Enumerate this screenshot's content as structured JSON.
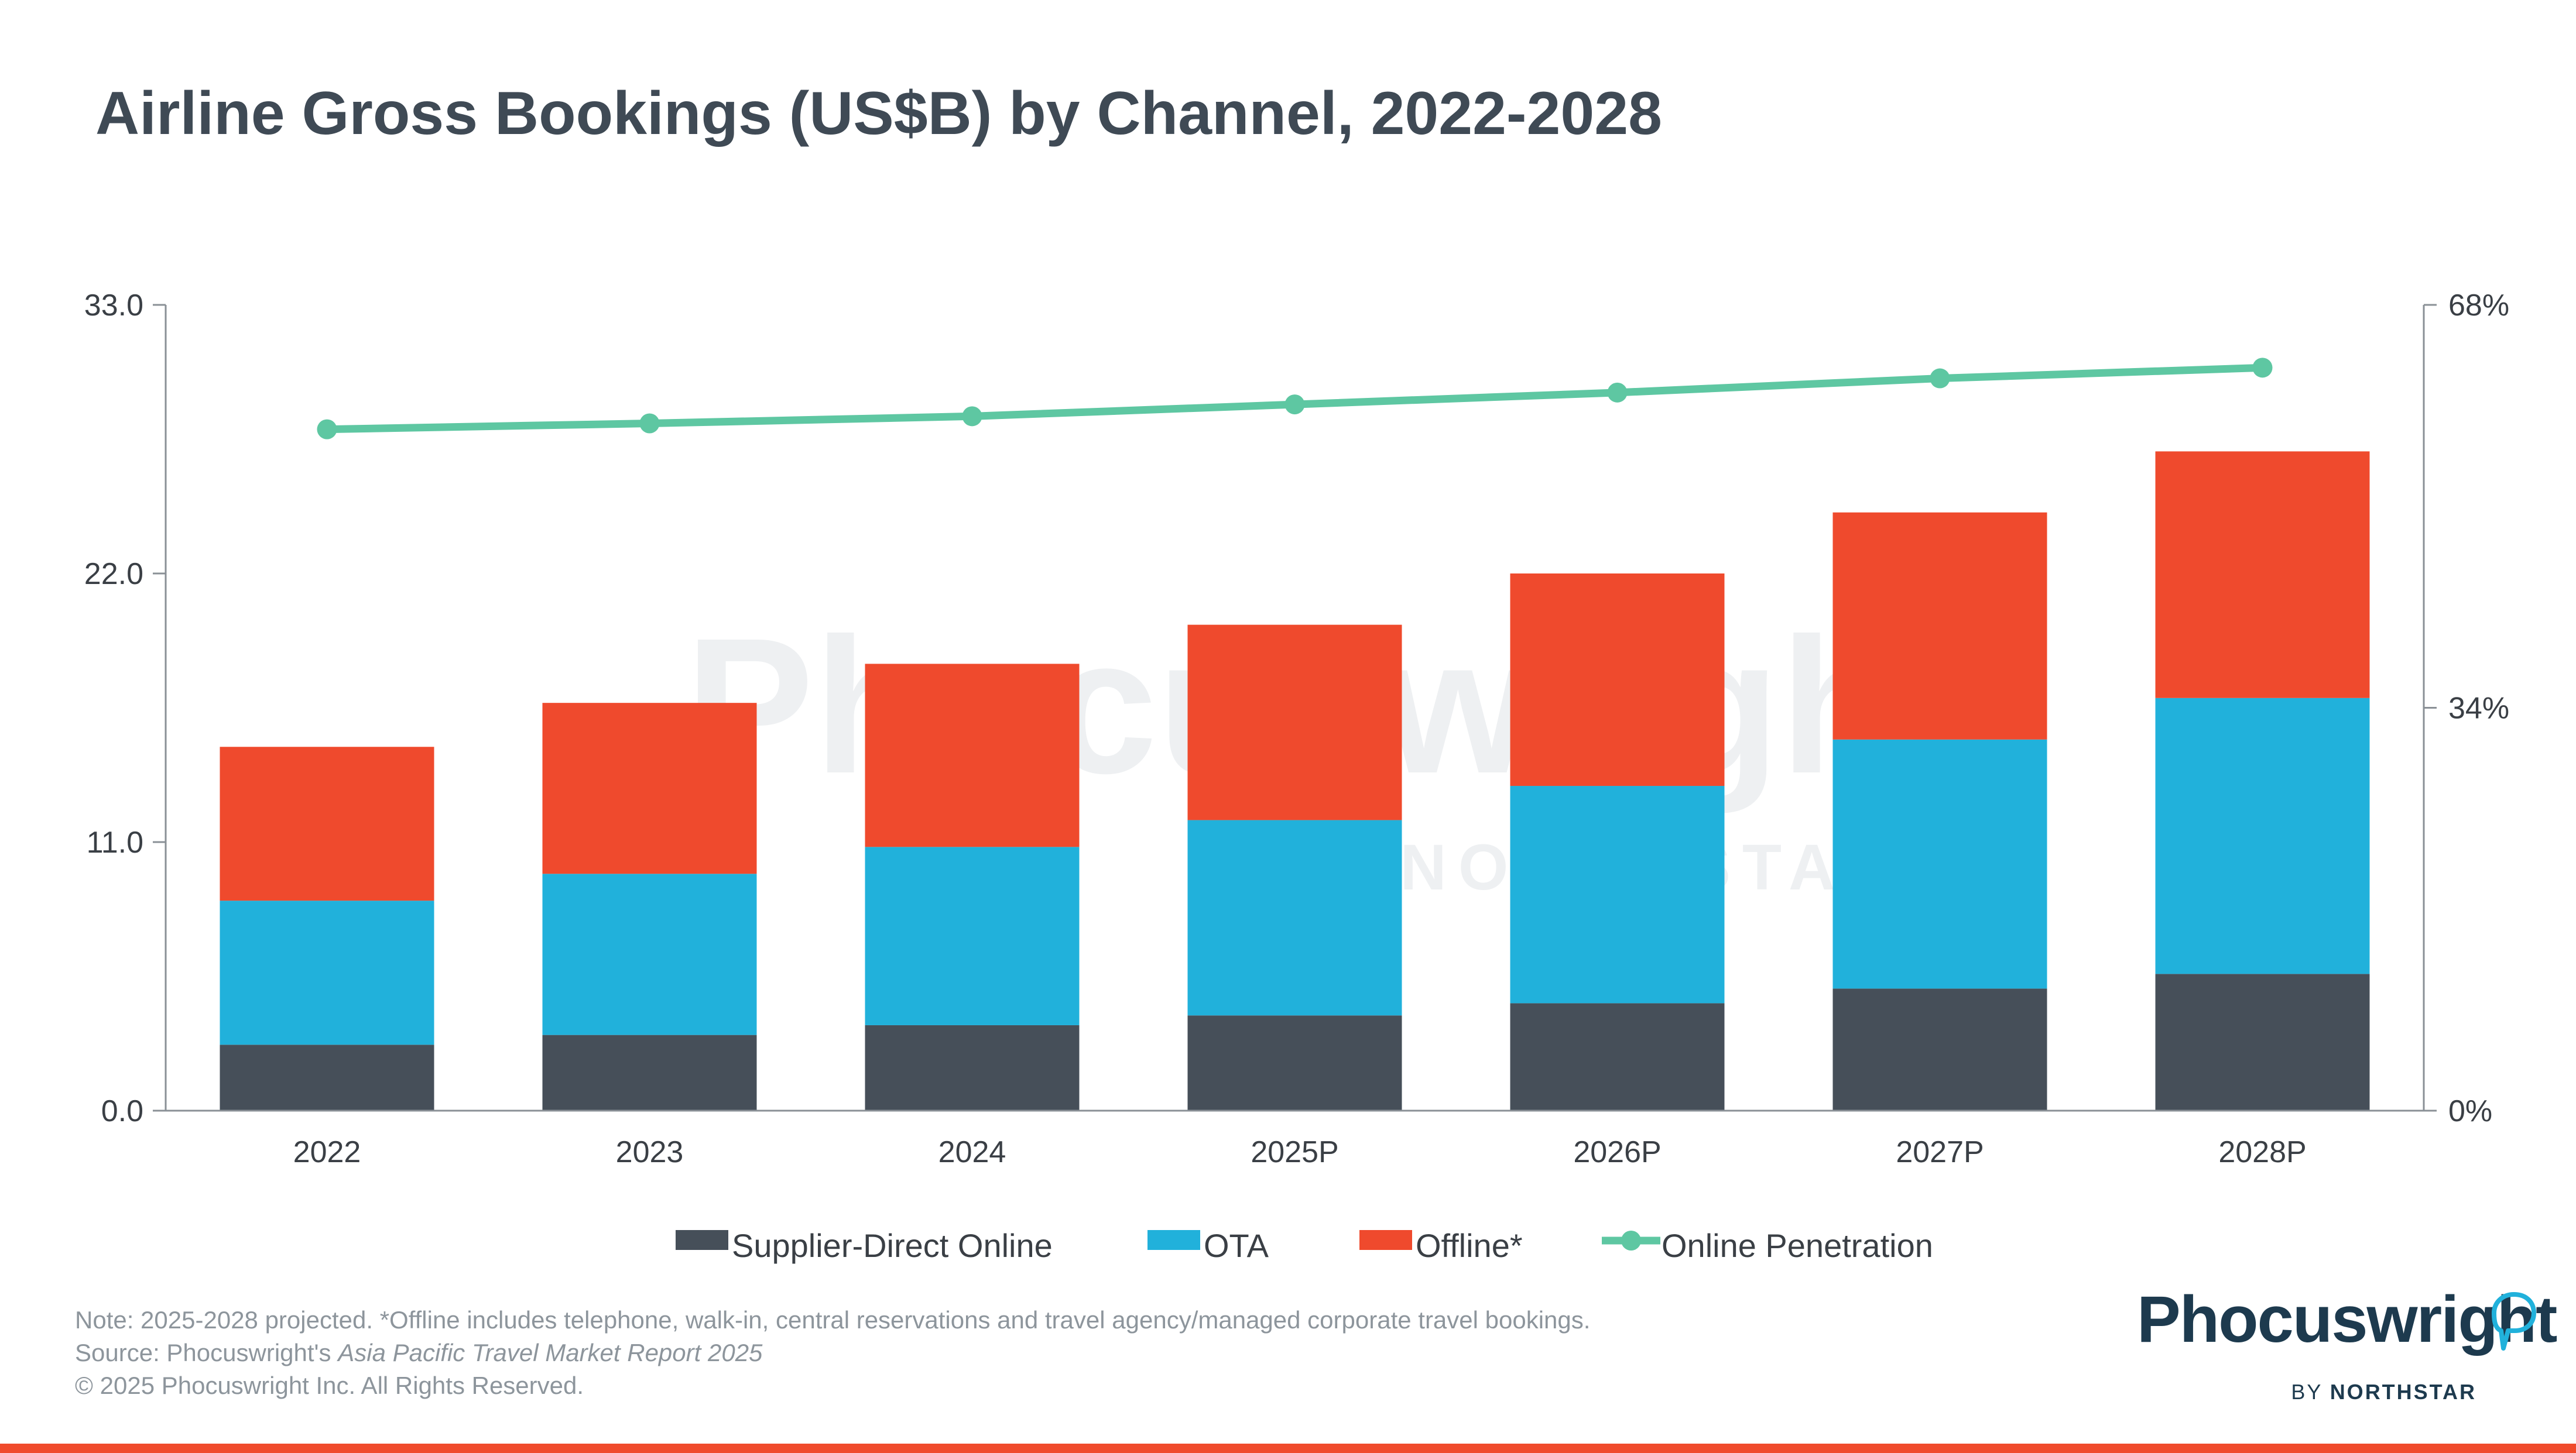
{
  "title": "Airline Gross Bookings (US$B) by Channel, 2022-2028",
  "colors": {
    "supplier": "#464f59",
    "ota": "#21b1db",
    "offline": "#ef4a2d",
    "penetration": "#5ec7a2",
    "axis": "#8a9096",
    "accent_rule": "#f04a2c"
  },
  "chart_data": {
    "type": "bar",
    "stacked": true,
    "categories": [
      "2022",
      "2023",
      "2024",
      "2025P",
      "2026P",
      "2027P",
      "2028P"
    ],
    "series": [
      {
        "name": "Supplier-Direct Online",
        "values": [
          2.7,
          3.1,
          3.5,
          3.9,
          4.4,
          5.0,
          5.6
        ]
      },
      {
        "name": "OTA",
        "values": [
          5.9,
          6.6,
          7.3,
          8.0,
          8.9,
          10.2,
          11.3
        ]
      },
      {
        "name": "Offline*",
        "values": [
          6.3,
          7.0,
          7.5,
          8.0,
          8.7,
          9.3,
          10.1
        ]
      }
    ],
    "line_series": {
      "name": "Online Penetration",
      "axis": "right",
      "values": [
        57.5,
        58.0,
        58.6,
        59.6,
        60.6,
        61.8,
        62.7
      ]
    },
    "y_left": {
      "min": 0,
      "max": 33,
      "ticks": [
        "0.0",
        "11.0",
        "22.0",
        "33.0"
      ],
      "tick_values": [
        0,
        11,
        22,
        33
      ]
    },
    "y_right": {
      "min": 0,
      "max": 68,
      "ticks": [
        "0%",
        "34%",
        "68%"
      ],
      "tick_values": [
        0,
        34,
        68
      ]
    },
    "legend": [
      "Supplier-Direct Online",
      "OTA",
      "Offline*",
      "Online Penetration"
    ],
    "legend_position": "bottom"
  },
  "watermark": {
    "brand": "Phocuswright",
    "sub": "BY NORTHSTAR"
  },
  "footer": {
    "note": "Note: 2025-2028 projected. *Offline includes telephone, walk-in, central reservations and travel agency/managed corporate travel bookings.",
    "source_prefix": "Source: Phocuswright's ",
    "source_report": "Asia Pacific Travel Market Report 2025",
    "copyright": "© 2025 Phocuswright Inc. All Rights Reserved."
  },
  "logo": {
    "word": "Phocuswright",
    "by": "BY ",
    "northstar": "NORTHSTAR"
  }
}
